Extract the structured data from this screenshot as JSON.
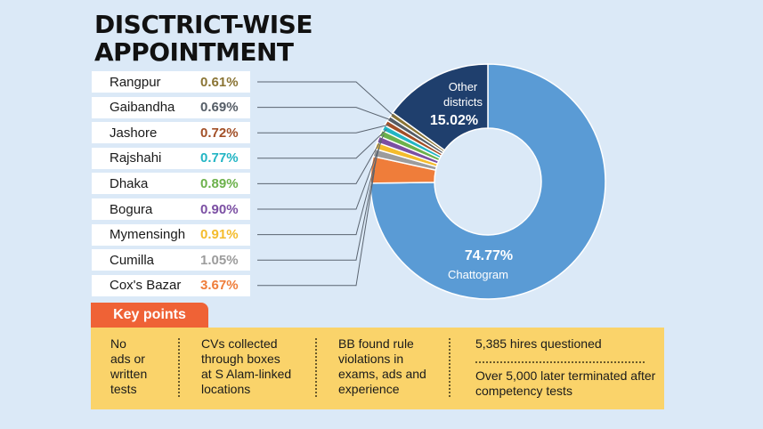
{
  "title_lines": [
    "DISCTRICT-WISE",
    "APPOINTMENT"
  ],
  "chart_data": {
    "type": "pie",
    "donut": true,
    "slices": [
      {
        "label": "Chattogram",
        "value": 74.77,
        "value_label": "74.77%",
        "color": "#5a9bd5"
      },
      {
        "label": "Cox's Bazar",
        "value": 3.67,
        "value_label": "3.67%",
        "color": "#ef7d3a"
      },
      {
        "label": "Cumilla",
        "value": 1.05,
        "value_label": "1.05%",
        "color": "#9c9c9c"
      },
      {
        "label": "Mymensingh",
        "value": 0.91,
        "value_label": "0.91%",
        "color": "#f4bc2c"
      },
      {
        "label": "Bogura",
        "value": 0.9,
        "value_label": "0.90%",
        "color": "#7b4fa3"
      },
      {
        "label": "Dhaka",
        "value": 0.89,
        "value_label": "0.89%",
        "color": "#6cb14b"
      },
      {
        "label": "Rajshahi",
        "value": 0.77,
        "value_label": "0.77%",
        "color": "#22b5c4"
      },
      {
        "label": "Jashore",
        "value": 0.72,
        "value_label": "0.72%",
        "color": "#a24f27"
      },
      {
        "label": "Gaibandha",
        "value": 0.69,
        "value_label": "0.69%",
        "color": "#555d66"
      },
      {
        "label": "Rangpur",
        "value": 0.61,
        "value_label": "0.61%",
        "color": "#8a7434"
      },
      {
        "label": "Other districts",
        "value": 15.02,
        "value_label": "15.02%",
        "color": "#1f3f6d"
      }
    ],
    "legend_order": [
      "Rangpur",
      "Gaibandha",
      "Jashore",
      "Rajshahi",
      "Dhaka",
      "Bogura",
      "Mymensingh",
      "Cumilla",
      "Cox's Bazar"
    ],
    "label_inside": {
      "Chattogram": true,
      "Other districts": true
    }
  },
  "key_points": {
    "header": "Key points",
    "items": [
      "No ads or written tests",
      "CVs collected through boxes at S Alam-linked locations",
      "BB found rule violations in exams, ads and experience",
      "5,385 hires questioned",
      "Over 5,000 later terminated after competency tests"
    ],
    "col1_lines": [
      "No",
      "ads or",
      "written",
      "tests"
    ],
    "col2_lines": [
      "CVs collected",
      "through boxes",
      "at S Alam-linked",
      "locations"
    ],
    "col3_lines": [
      "BB found rule",
      "violations in",
      "exams, ads and",
      "experience"
    ],
    "col4_top": "5,385 hires questioned",
    "col4_bottom_lines": [
      "Over 5,000 later terminated after",
      "competency tests"
    ]
  }
}
